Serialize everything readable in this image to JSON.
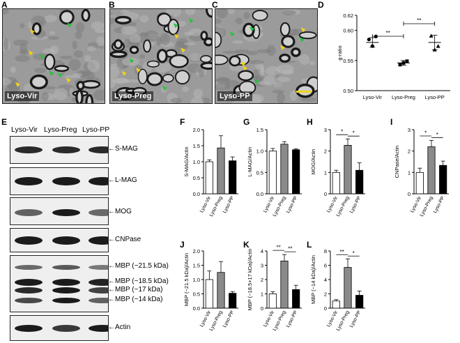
{
  "panel_letters": {
    "A": "A",
    "B": "B",
    "C": "C",
    "D": "D",
    "E": "E",
    "F": "F",
    "G": "G",
    "H": "H",
    "I": "I",
    "J": "J",
    "K": "K",
    "L": "L"
  },
  "em_images": [
    {
      "letter_key": "A",
      "label": "Lyso-Vir"
    },
    {
      "letter_key": "B",
      "label": "Lyso-Preg"
    },
    {
      "letter_key": "C",
      "label": "Lyso-PP"
    }
  ],
  "blot": {
    "lanes": [
      "Lyso-Vir",
      "Lyso-Preg",
      "Lyso-PP"
    ],
    "markers": [
      "S-MAG",
      "L-MAG",
      "MOG",
      "CNPase",
      "MBP (~21.5 kDa)",
      "MBP (~18.5 kDa)",
      "MBP (~17 kDa)",
      "MBP (~14 kDa)",
      "Actin"
    ]
  },
  "colors": {
    "vir": "#ffffff",
    "preg": "#8a8a8a",
    "pp": "#000000",
    "arrow_yellow": "#f2d21a",
    "arrow_green": "#22c43a"
  },
  "chart_data": [
    {
      "id": "D",
      "type": "scatter",
      "ylabel": "g-ratio",
      "categories": [
        "Lyso-Vir",
        "Lyso-Preg",
        "Lyso-PP"
      ],
      "ylim": [
        0.5,
        0.625
      ],
      "yticks": [
        "0.50",
        "0.55",
        "0.60",
        "0.62"
      ],
      "ytick_values": [
        0.5,
        0.55,
        0.6,
        0.625
      ],
      "means": [
        0.58,
        0.546,
        0.58
      ],
      "errors": [
        0.008,
        0.004,
        0.012
      ],
      "points": [
        [
          0.585,
          0.574,
          0.59
        ],
        [
          0.543,
          0.546,
          0.549
        ],
        [
          0.591,
          0.568,
          0.574
        ]
      ],
      "marker_shapes": [
        "circle",
        "square",
        "triangle"
      ],
      "significance": [
        {
          "from": 0,
          "to": 1,
          "label": "**"
        },
        {
          "from": 1,
          "to": 2,
          "label": "**"
        }
      ]
    },
    {
      "id": "F",
      "type": "bar",
      "ylabel": "S-MAG/Actin",
      "categories": [
        "Lyso-Vir",
        "Lyso-Preg",
        "Lyso-PP"
      ],
      "values": [
        1.0,
        1.43,
        1.03
      ],
      "errors": [
        0.06,
        0.38,
        0.12
      ],
      "ylim": [
        0,
        2.0
      ],
      "yticks": [
        "0.0",
        "0.5",
        "1.0",
        "1.5",
        "2.0"
      ],
      "ytick_values": [
        0,
        0.5,
        1.0,
        1.5,
        2.0
      ],
      "significance": []
    },
    {
      "id": "G",
      "type": "bar",
      "ylabel": "L-MAG/Actin",
      "categories": [
        "Lyso-Vir",
        "Lyso-Preg",
        "Lyso-PP"
      ],
      "values": [
        1.0,
        1.16,
        1.03
      ],
      "errors": [
        0.06,
        0.06,
        0.02
      ],
      "ylim": [
        0,
        1.5
      ],
      "yticks": [
        "0.0",
        "0.5",
        "1.0",
        "1.5"
      ],
      "ytick_values": [
        0,
        0.5,
        1.0,
        1.5
      ],
      "significance": []
    },
    {
      "id": "H",
      "type": "bar",
      "ylabel": "MOG/Actin",
      "categories": [
        "Lyso-Vir",
        "Lyso-Preg",
        "Lyso-PP"
      ],
      "values": [
        1.0,
        2.27,
        1.1
      ],
      "errors": [
        0.1,
        0.3,
        0.35
      ],
      "ylim": [
        0,
        3
      ],
      "yticks": [
        "0",
        "1",
        "2",
        "3"
      ],
      "ytick_values": [
        0,
        1,
        2,
        3
      ],
      "significance": [
        {
          "from": 0,
          "to": 1,
          "label": "*"
        },
        {
          "from": 1,
          "to": 2,
          "label": "*"
        }
      ]
    },
    {
      "id": "I",
      "type": "bar",
      "ylabel": "CNPase/Actin",
      "categories": [
        "Lyso-Vir",
        "Lyso-Preg",
        "Lyso-PP"
      ],
      "values": [
        1.0,
        2.2,
        1.33
      ],
      "errors": [
        0.2,
        0.3,
        0.2
      ],
      "ylim": [
        0,
        3
      ],
      "yticks": [
        "0",
        "1",
        "2",
        "3"
      ],
      "ytick_values": [
        0,
        1,
        2,
        3
      ],
      "significance": [
        {
          "from": 0,
          "to": 1,
          "label": "*"
        },
        {
          "from": 1,
          "to": 2,
          "label": "*"
        }
      ]
    },
    {
      "id": "J",
      "type": "bar",
      "ylabel": "MBP (~21.5 kDa)/Actin",
      "categories": [
        "Lyso-Vir",
        "Lyso-Preg",
        "Lyso-PP"
      ],
      "values": [
        1.0,
        1.25,
        0.52
      ],
      "errors": [
        0.3,
        0.38,
        0.06
      ],
      "ylim": [
        0,
        2.0
      ],
      "yticks": [
        "0.0",
        "0.5",
        "1.0",
        "1.5",
        "2.0"
      ],
      "ytick_values": [
        0,
        0.5,
        1.0,
        1.5,
        2.0
      ],
      "significance": []
    },
    {
      "id": "K",
      "type": "bar",
      "ylabel": "MBP (~18.5+17 kDa)/Actin",
      "categories": [
        "Lyso-Vir",
        "Lyso-Preg",
        "Lyso-PP"
      ],
      "values": [
        1.0,
        3.3,
        1.3
      ],
      "errors": [
        0.15,
        0.45,
        0.3
      ],
      "ylim": [
        0,
        4
      ],
      "yticks": [
        "0",
        "1",
        "2",
        "3",
        "4"
      ],
      "ytick_values": [
        0,
        1,
        2,
        3,
        4
      ],
      "significance": [
        {
          "from": 0,
          "to": 1,
          "label": "**"
        },
        {
          "from": 1,
          "to": 2,
          "label": "**"
        }
      ]
    },
    {
      "id": "L",
      "type": "bar",
      "ylabel": "MBP (~14 kDa)/Actin",
      "categories": [
        "Lyso-Vir",
        "Lyso-Preg",
        "Lyso-PP"
      ],
      "values": [
        1.0,
        5.7,
        1.8
      ],
      "errors": [
        0.2,
        1.2,
        0.6
      ],
      "ylim": [
        0,
        8
      ],
      "yticks": [
        "0",
        "2",
        "4",
        "6",
        "8"
      ],
      "ytick_values": [
        0,
        2,
        4,
        6,
        8
      ],
      "significance": [
        {
          "from": 0,
          "to": 1,
          "label": "**"
        },
        {
          "from": 1,
          "to": 2,
          "label": "*"
        }
      ]
    }
  ]
}
